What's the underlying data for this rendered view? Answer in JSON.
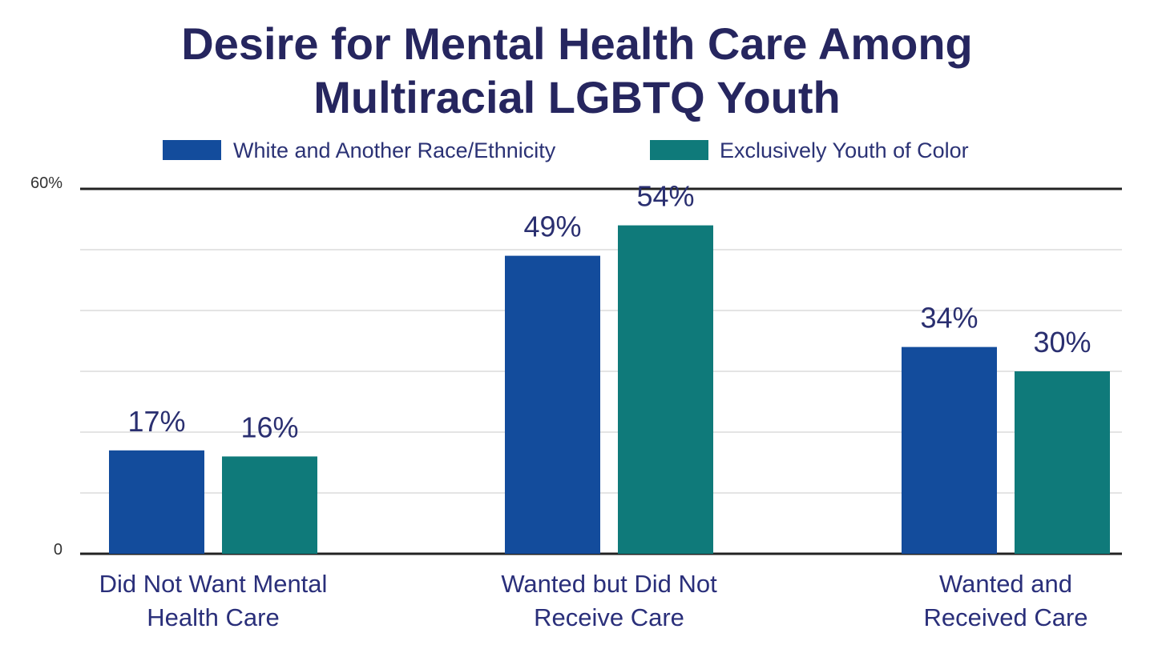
{
  "chart_data": {
    "type": "bar",
    "title": [
      "Desire for Mental Health Care Among",
      "Multiracial LGBTQ Youth"
    ],
    "categories": [
      [
        "Did Not Want Mental",
        "Health Care"
      ],
      [
        "Wanted but Did Not",
        "Receive Care"
      ],
      [
        "Wanted and",
        "Received Care"
      ]
    ],
    "series": [
      {
        "name": "White and Another Race/Ethnicity",
        "color": "#134c9c",
        "values": [
          17,
          49,
          34
        ],
        "labels": [
          "17%",
          "49%",
          "34%"
        ]
      },
      {
        "name": "Exclusively Youth of Color",
        "color": "#0f7a7a",
        "values": [
          16,
          54,
          30
        ],
        "labels": [
          "16%",
          "54%",
          "30%"
        ]
      }
    ],
    "ylim": [
      0,
      60
    ],
    "y_tick_labels": {
      "top": "60%",
      "bottom": "0"
    },
    "grid": true,
    "grid_step": 10,
    "legend": "top-center",
    "xlabel": "",
    "ylabel": ""
  }
}
